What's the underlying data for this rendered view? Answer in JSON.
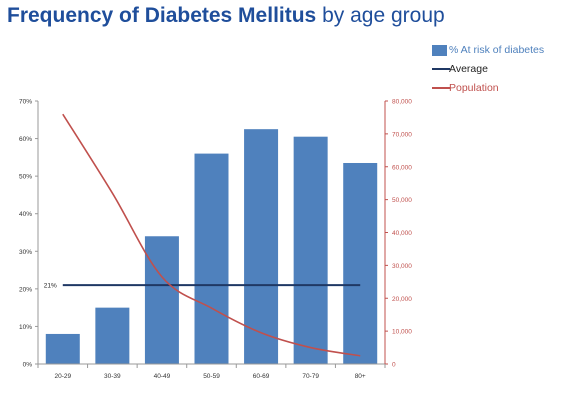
{
  "title": {
    "bold_part": "Frequency of Diabetes Mellitus",
    "rest": "by age group"
  },
  "colors": {
    "bars": "#4f81bd",
    "average": "#1f3864",
    "population": "#c0504d",
    "title": "#1f4e9b"
  },
  "chart_data": {
    "type": "bar",
    "categories": [
      "20-29",
      "30-39",
      "40-49",
      "50-59",
      "60-69",
      "70-79",
      "80+"
    ],
    "series": [
      {
        "name": "% At risk of diabetes",
        "type": "bar",
        "axis": "left",
        "values": [
          8,
          15,
          34,
          56,
          62.5,
          60.5,
          53.5
        ]
      },
      {
        "name": "Average",
        "type": "line",
        "axis": "left",
        "values": [
          21,
          21,
          21,
          21,
          21,
          21,
          21
        ]
      },
      {
        "name": "Population",
        "type": "line",
        "axis": "right",
        "values": [
          76000,
          52000,
          26500,
          17000,
          9500,
          5000,
          2500
        ]
      }
    ],
    "y_left": {
      "range": [
        0,
        70
      ],
      "ticks": [
        "0%",
        "10%",
        "20%",
        "30%",
        "40%",
        "50%",
        "60%",
        "70%"
      ]
    },
    "y_right": {
      "range": [
        0,
        80000
      ],
      "ticks": [
        "0",
        "10,000",
        "20,000",
        "30,000",
        "40,000",
        "50,000",
        "60,000",
        "70,000",
        "80,000"
      ]
    },
    "annotations": [
      {
        "text": "21%",
        "series": "Average"
      }
    ],
    "legend": "top-right",
    "grid": false
  }
}
